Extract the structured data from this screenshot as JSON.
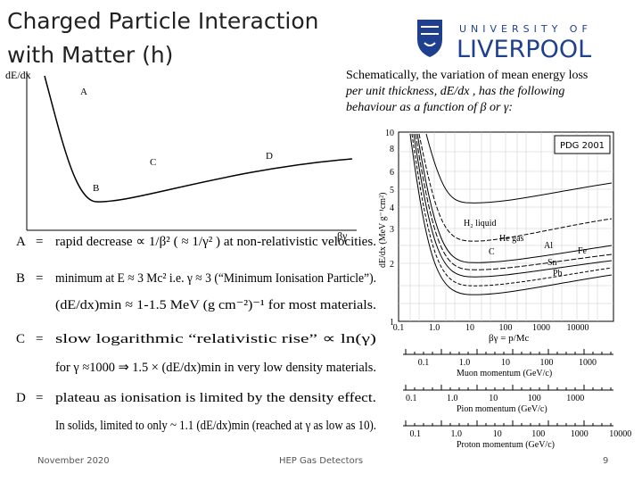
{
  "title_lines": [
    "Charged Particle Interaction",
    "with Matter (h)"
  ],
  "logo": {
    "top": "UNIVERSITY OF",
    "bottom": "LIVERPOOL"
  },
  "description": [
    "Schematically, the variation of mean energy loss",
    "per unit thickness, dE/dx , has the following",
    "behaviour as a function of β or γ:"
  ],
  "sketch": {
    "y_label": "dE/dx",
    "x_label": "βγ",
    "points": [
      "A",
      "B",
      "C",
      "D"
    ]
  },
  "pdg": {
    "badge": "PDG 2001",
    "y_label": "dE/dx (MeV g⁻¹cm²)",
    "yticks": [
      "10",
      "8",
      "6",
      "5",
      "4",
      "3",
      "2",
      "1"
    ],
    "xticks": [
      "0.1",
      "1.0",
      "10",
      "100",
      "1000",
      "10000"
    ],
    "x_label": "βγ = p/Mc",
    "materials": [
      "H₂ liquid",
      "He gas",
      "C",
      "Al",
      "Fe",
      "Sn",
      "Pb"
    ],
    "momentum_axes": [
      {
        "label": "Muon momentum (GeV/c)",
        "ticks": [
          "0.1",
          "1.0",
          "10",
          "100",
          "1000"
        ]
      },
      {
        "label": "Pion momentum (GeV/c)",
        "ticks": [
          "0.1",
          "1.0",
          "10",
          "100",
          "1000"
        ]
      },
      {
        "label": "Proton momentum (GeV/c)",
        "ticks": [
          "0.1",
          "1.0",
          "10",
          "100",
          "1000",
          "10000"
        ]
      }
    ]
  },
  "items": [
    {
      "key": "A",
      "eq": "=",
      "lines": [
        "rapid decrease ∝ 1/β² ( ≈ 1/γ² ) at non-relativistic velocities."
      ]
    },
    {
      "key": "B",
      "eq": "=",
      "lines": [
        "minimum at E ≈ 3 Mc²  i.e. γ ≈ 3 (“Minimum Ionisation Particle”).",
        "(dE/dx)min ≈ 1-1.5 MeV (g cm⁻²)⁻¹ for most materials."
      ]
    },
    {
      "key": "C",
      "eq": "=",
      "lines": [
        "slow logarithmic “relativistic rise” ∝ ln(γ)",
        "for γ ≈1000 ⇒ 1.5 × (dE/dx)min in very low density materials."
      ]
    },
    {
      "key": "D",
      "eq": "=",
      "lines": [
        "plateau as ionisation is limited by the density effect.",
        "In solids, limited to only ~ 1.1 (dE/dx)min  (reached at γ as low as 10)."
      ]
    }
  ],
  "footer": {
    "date": "November 2020",
    "center": "HEP Gas Detectors",
    "page": "9"
  }
}
